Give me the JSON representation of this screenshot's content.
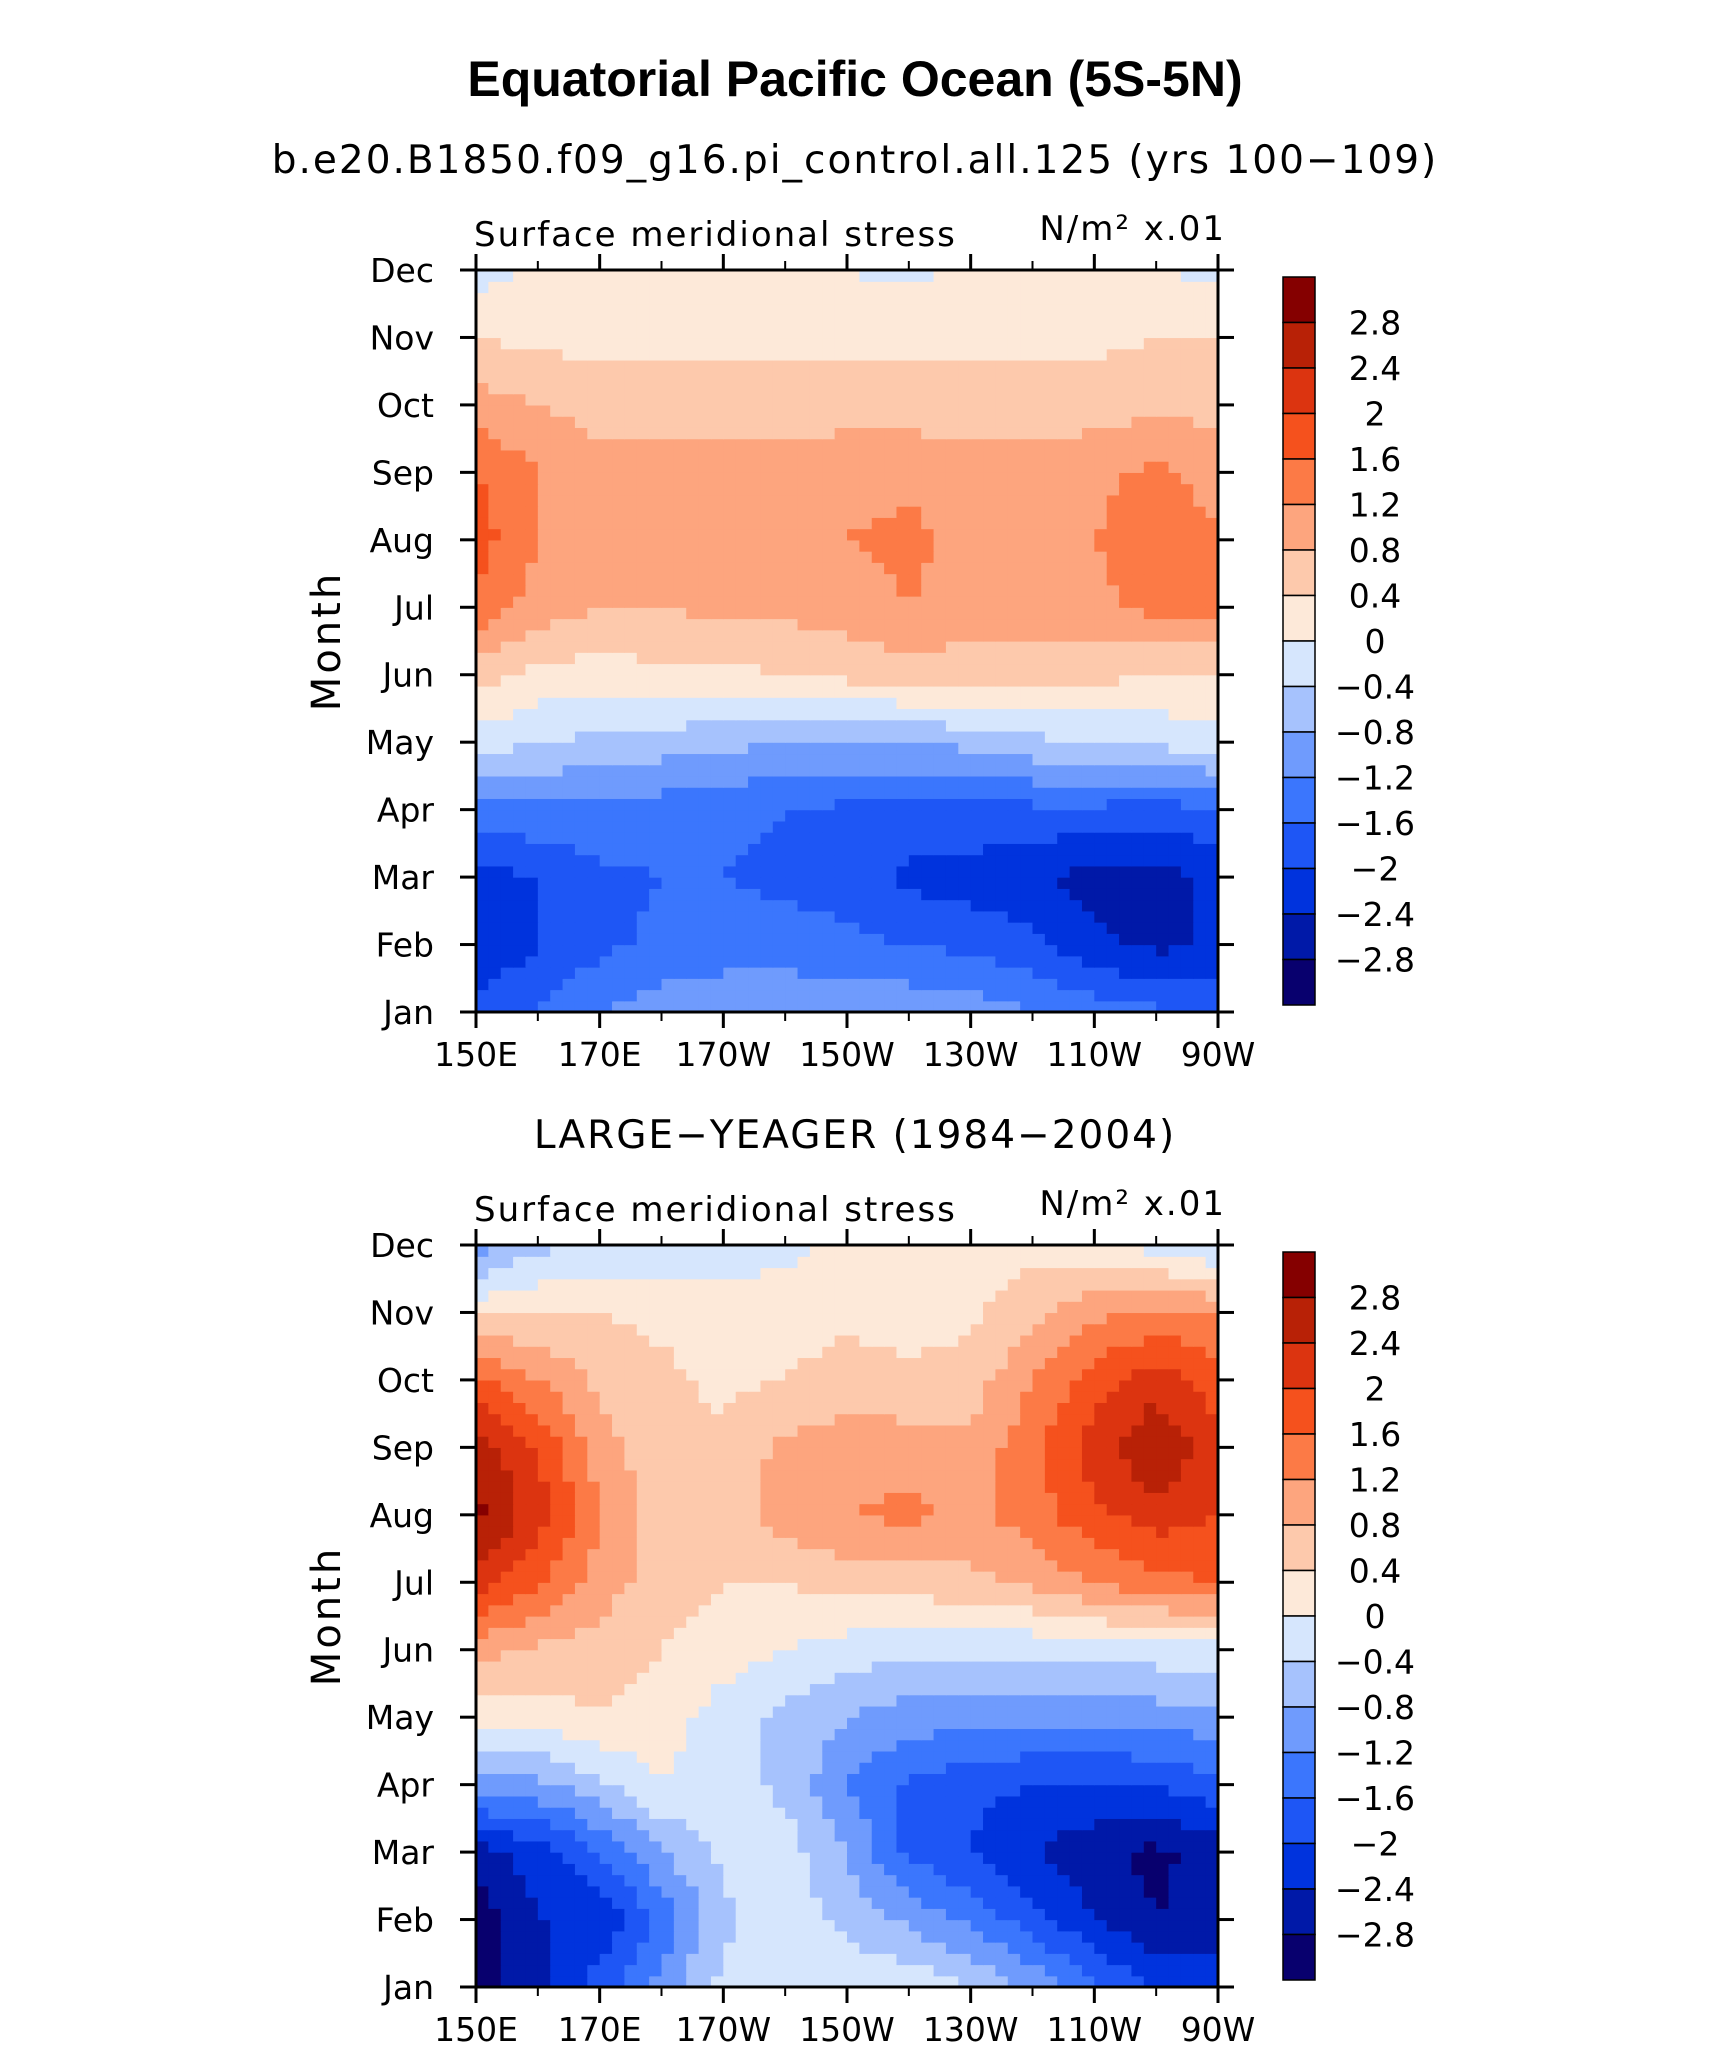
{
  "title": "Equatorial Pacific Ocean (5S-5N)",
  "chart_data": [
    {
      "type": "heatmap",
      "subtitle": "b.e20.B1850.f09_g16.pi_control.all.125 (yrs 100−109)",
      "left_label": "Surface meridional stress",
      "units_label": "N/m² x.01",
      "ylabel": "Month",
      "xlabel": "",
      "x_ticks": [
        "150E",
        "170E",
        "170W",
        "150W",
        "130W",
        "110W",
        "90W"
      ],
      "y_ticks": [
        "Jan",
        "Feb",
        "Mar",
        "Apr",
        "May",
        "Jun",
        "Jul",
        "Aug",
        "Sep",
        "Oct",
        "Nov",
        "Dec"
      ],
      "x": [
        150,
        160,
        170,
        180,
        190,
        200,
        210,
        220,
        230,
        240,
        250,
        260,
        270
      ],
      "grid": false,
      "values": [
        [
          -1.8,
          -1.6,
          -1.2,
          -1.0,
          -0.9,
          -0.9,
          -0.9,
          -0.9,
          -1.0,
          -1.2,
          -1.4,
          -1.5,
          -1.8
        ],
        [
          -2.4,
          -2.0,
          -1.7,
          -1.5,
          -1.4,
          -1.4,
          -1.5,
          -1.6,
          -1.7,
          -1.9,
          -2.3,
          -2.5,
          -2.3
        ],
        [
          -2.2,
          -2.0,
          -1.7,
          -1.6,
          -1.6,
          -1.7,
          -1.8,
          -2.1,
          -2.2,
          -2.3,
          -2.6,
          -2.6,
          -2.3
        ],
        [
          -1.3,
          -1.3,
          -1.3,
          -1.4,
          -1.5,
          -1.6,
          -1.7,
          -1.7,
          -1.7,
          -1.7,
          -1.7,
          -1.8,
          -1.6
        ],
        [
          -0.2,
          -0.4,
          -0.5,
          -0.6,
          -0.7,
          -0.8,
          -0.8,
          -0.8,
          -0.7,
          -0.5,
          -0.4,
          -0.3,
          -0.2
        ],
        [
          0.6,
          0.3,
          0.2,
          0.3,
          0.3,
          0.4,
          0.5,
          0.6,
          0.6,
          0.6,
          0.5,
          0.4,
          0.4
        ],
        [
          1.5,
          1.0,
          0.8,
          0.8,
          0.9,
          0.9,
          1.0,
          1.2,
          1.0,
          1.0,
          1.1,
          1.3,
          1.3
        ],
        [
          1.8,
          1.2,
          1.0,
          1.0,
          1.0,
          1.0,
          1.2,
          1.3,
          1.1,
          1.0,
          1.2,
          1.4,
          1.3
        ],
        [
          1.6,
          1.2,
          1.0,
          1.0,
          1.0,
          1.0,
          1.1,
          1.1,
          1.0,
          1.0,
          1.1,
          1.3,
          1.0
        ],
        [
          1.0,
          0.8,
          0.6,
          0.6,
          0.6,
          0.6,
          0.6,
          0.6,
          0.6,
          0.6,
          0.6,
          0.7,
          0.7
        ],
        [
          0.4,
          0.3,
          0.3,
          0.3,
          0.3,
          0.3,
          0.3,
          0.3,
          0.3,
          0.3,
          0.3,
          0.4,
          0.4
        ],
        [
          -0.2,
          0.1,
          0.1,
          0.1,
          0.1,
          0.1,
          0.0,
          -0.1,
          0.1,
          0.1,
          0.1,
          0.0,
          -0.1
        ]
      ],
      "colorbar_labels": [
        "2.8",
        "2.4",
        "2",
        "1.6",
        "1.2",
        "0.8",
        "0.4",
        "0",
        "−0.4",
        "−0.8",
        "−1.2",
        "−1.6",
        "−2",
        "−2.4",
        "−2.8"
      ]
    },
    {
      "type": "heatmap",
      "subtitle": "LARGE−YEAGER (1984−2004)",
      "left_label": "Surface meridional stress",
      "units_label": "N/m² x.01",
      "ylabel": "Month",
      "xlabel": "",
      "x_ticks": [
        "150E",
        "170E",
        "170W",
        "150W",
        "130W",
        "110W",
        "90W"
      ],
      "y_ticks": [
        "Jan",
        "Feb",
        "Mar",
        "Apr",
        "May",
        "Jun",
        "Jul",
        "Aug",
        "Sep",
        "Oct",
        "Nov",
        "Dec"
      ],
      "x": [
        150,
        160,
        170,
        180,
        190,
        200,
        210,
        220,
        230,
        240,
        250,
        260,
        270
      ],
      "grid": false,
      "values": [
        [
          -3.0,
          -2.6,
          -1.8,
          -1.0,
          -0.3,
          -0.1,
          -0.1,
          -0.1,
          -0.4,
          -0.9,
          -1.5,
          -2.0,
          -2.2
        ],
        [
          -3.1,
          -2.4,
          -2.3,
          -1.5,
          -0.5,
          -0.2,
          -0.5,
          -0.9,
          -1.3,
          -1.8,
          -2.4,
          -2.8,
          -2.6
        ],
        [
          -2.6,
          -2.2,
          -1.6,
          -0.8,
          -0.3,
          -0.2,
          -0.8,
          -1.7,
          -2.0,
          -2.4,
          -2.7,
          -2.9,
          -2.6
        ],
        [
          -1.0,
          -0.9,
          -0.5,
          0.0,
          -0.2,
          -0.5,
          -1.2,
          -1.7,
          -1.9,
          -2.0,
          -2.0,
          -2.0,
          -1.7
        ],
        [
          0.2,
          0.2,
          0.4,
          0.2,
          -0.2,
          -0.5,
          -0.8,
          -1.0,
          -1.0,
          -1.1,
          -1.1,
          -1.0,
          -1.0
        ],
        [
          1.0,
          0.7,
          0.6,
          0.4,
          0.2,
          0.0,
          -0.2,
          -0.3,
          -0.3,
          -0.3,
          -0.2,
          -0.2,
          -0.2
        ],
        [
          2.2,
          1.7,
          1.0,
          0.6,
          0.4,
          0.4,
          0.6,
          0.6,
          0.7,
          0.9,
          1.2,
          1.5,
          1.6
        ],
        [
          2.9,
          2.2,
          1.2,
          0.6,
          0.6,
          1.0,
          1.2,
          1.3,
          1.1,
          1.4,
          1.9,
          2.2,
          2.0
        ],
        [
          2.6,
          2.0,
          1.0,
          0.5,
          0.5,
          0.9,
          1.0,
          1.0,
          0.9,
          1.5,
          2.2,
          2.8,
          2.1
        ],
        [
          1.7,
          1.2,
          0.7,
          0.5,
          0.3,
          0.4,
          0.6,
          0.5,
          0.6,
          1.2,
          1.8,
          2.2,
          1.8
        ],
        [
          0.3,
          0.4,
          0.4,
          0.3,
          0.2,
          0.2,
          0.3,
          0.2,
          0.3,
          0.7,
          1.1,
          1.3,
          1.2
        ],
        [
          -1.0,
          -0.5,
          -0.4,
          -0.3,
          -0.2,
          -0.1,
          0.1,
          0.2,
          0.2,
          0.3,
          0.1,
          -0.2,
          -0.5
        ]
      ],
      "colorbar_labels": [
        "2.8",
        "2.4",
        "2",
        "1.6",
        "1.2",
        "0.8",
        "0.4",
        "0",
        "−0.4",
        "−0.8",
        "−1.2",
        "−1.6",
        "−2",
        "−2.4",
        "−2.8"
      ]
    }
  ],
  "colors": {
    "levels": [
      "#08006e",
      "#0019a8",
      "#0033dd",
      "#1e56f5",
      "#3b76fd",
      "#6f9bfd",
      "#a6c2fd",
      "#d6e6fd",
      "#fde9d9",
      "#fdc9ac",
      "#fda57e",
      "#fc7a46",
      "#f5511d",
      "#dc3410",
      "#b82106",
      "#850000"
    ],
    "boundaries": [
      -2.8,
      -2.4,
      -2.0,
      -1.6,
      -1.2,
      -0.8,
      -0.4,
      0.0,
      0.4,
      0.8,
      1.2,
      1.6,
      2.0,
      2.4,
      2.8
    ]
  }
}
